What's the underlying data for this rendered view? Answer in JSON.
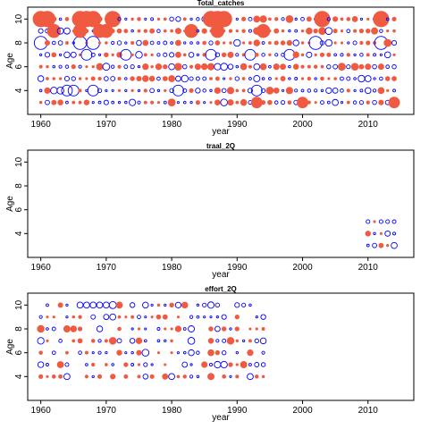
{
  "chart_data": [
    {
      "type": "scatter",
      "title": "Total_catches",
      "xlabel": "year",
      "ylabel": "Age",
      "xlim": [
        1958,
        2017
      ],
      "ylim": [
        2,
        11
      ],
      "x_ticks": [
        1960,
        1970,
        1980,
        1990,
        2000,
        2010
      ],
      "y_ticks": [
        4,
        6,
        8,
        10
      ],
      "grid": false,
      "years": [
        1960,
        2014
      ],
      "ages": [
        3,
        10
      ],
      "seed": 11,
      "density": 1.0,
      "rows": [
        {
          "age": 10,
          "years": [
            1960,
            1961,
            1966,
            1967,
            1968,
            1971,
            1986,
            1987,
            1988,
            2003,
            2012
          ],
          "size": 3,
          "color": "#f05a40",
          "filled": true
        },
        {
          "age": 9,
          "years": [
            1962,
            1966,
            1969,
            1970,
            1983,
            1987,
            1994
          ],
          "size": 2.5,
          "color": "#f05a40",
          "filled": true
        },
        {
          "age": 8,
          "years": [
            1960,
            1966,
            1968,
            2002,
            2012
          ],
          "size": 2.5,
          "color": "#0000ff",
          "filled": false
        },
        {
          "age": 7,
          "years": [
            1967,
            1973,
            1986,
            1992,
            1998
          ],
          "size": 2,
          "color": "#0000ff",
          "filled": false
        },
        {
          "age": 4,
          "years": [
            1964,
            1965,
            1968,
            1981,
            1993
          ],
          "size": 2,
          "color": "#0000ff",
          "filled": false
        },
        {
          "age": 3,
          "years": [
            1993,
            2000,
            2014
          ],
          "size": 2,
          "color": "#f05a40",
          "filled": true
        }
      ]
    },
    {
      "type": "scatter",
      "title": "traal_2Q",
      "xlabel": "year",
      "ylabel": "Age",
      "xlim": [
        1958,
        2017
      ],
      "ylim": [
        2,
        11
      ],
      "x_ticks": [
        1960,
        1970,
        1980,
        1990,
        2000,
        2010
      ],
      "y_ticks": [
        4,
        6,
        8,
        10
      ],
      "grid": false,
      "years": [
        2010,
        2014
      ],
      "ages": [
        3,
        5
      ],
      "seed": 23,
      "density": 1.0,
      "rows": [
        {
          "age": 5,
          "years": [
            2010,
            2012,
            2013
          ],
          "size": 0.5,
          "color": "#0000ff",
          "filled": false
        },
        {
          "age": 3,
          "years": [
            2014
          ],
          "size": 1,
          "color": "#0000ff",
          "filled": false
        }
      ]
    },
    {
      "type": "scatter",
      "title": "effort_2Q",
      "xlabel": "year",
      "ylabel": "Age",
      "xlim": [
        1958,
        2017
      ],
      "ylim": [
        2,
        11
      ],
      "x_ticks": [
        1960,
        1970,
        1980,
        1990,
        2000,
        2010
      ],
      "y_ticks": [
        4,
        6,
        8,
        10
      ],
      "grid": false,
      "years": [
        1960,
        1994
      ],
      "ages": [
        4,
        10
      ],
      "seed": 37,
      "density": 0.75,
      "rows": [
        {
          "age": 10,
          "years": [
            1966,
            1967,
            1968,
            1969,
            1970
          ],
          "size": 1,
          "color": "#0000ff",
          "filled": false
        },
        {
          "age": 4,
          "years": [
            1964,
            1980,
            1992
          ],
          "size": 1,
          "color": "#0000ff",
          "filled": false
        }
      ]
    }
  ]
}
